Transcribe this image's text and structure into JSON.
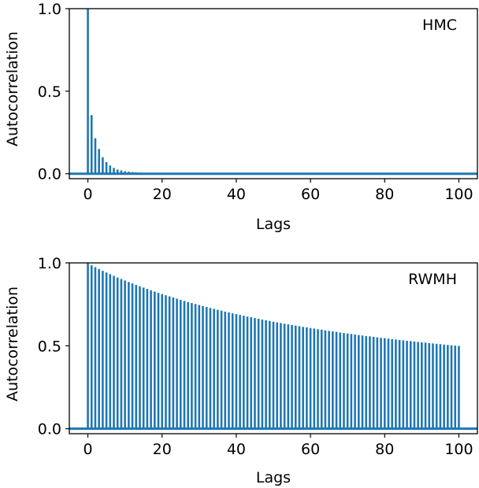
{
  "chart_data": [
    {
      "type": "bar",
      "panel_label": "HMC",
      "xlabel": "Lags",
      "ylabel": "Autocorrelation",
      "xlim": [
        -5,
        105
      ],
      "ylim": [
        -0.03,
        1.0
      ],
      "xticks": [
        0,
        20,
        40,
        60,
        80,
        100
      ],
      "xtick_labels": [
        "0",
        "20",
        "40",
        "60",
        "80",
        "100"
      ],
      "yticks": [
        0.0,
        0.5,
        1.0
      ],
      "ytick_labels": [
        "0.0",
        "0.5",
        "1.0"
      ],
      "bar_color": "#1f77b4",
      "grid": false,
      "lags": [
        0,
        1,
        2,
        3,
        4,
        5,
        6,
        7,
        8,
        9,
        10,
        11,
        12,
        13,
        14,
        15,
        16,
        17,
        18,
        19,
        20,
        21,
        22,
        23,
        24,
        25,
        26,
        27,
        28,
        29,
        30,
        31,
        32,
        33,
        34,
        35,
        36,
        37,
        38,
        39,
        40,
        41,
        42,
        43,
        44,
        45,
        46,
        47,
        48,
        49,
        50,
        51,
        52,
        53,
        54,
        55,
        56,
        57,
        58,
        59,
        60,
        61,
        62,
        63,
        64,
        65,
        66,
        67,
        68,
        69,
        70,
        71,
        72,
        73,
        74,
        75,
        76,
        77,
        78,
        79,
        80,
        81,
        82,
        83,
        84,
        85,
        86,
        87,
        88,
        89,
        90,
        91,
        92,
        93,
        94,
        95,
        96,
        97,
        98,
        99,
        100
      ],
      "values": [
        1.0,
        0.355,
        0.215,
        0.15,
        0.1,
        0.07,
        0.05,
        0.035,
        0.025,
        0.02,
        0.015,
        0.012,
        0.01,
        0.008,
        0.006,
        0.005,
        0.004,
        0.003,
        0.003,
        0.002,
        0.002,
        0.002,
        0.001,
        0.001,
        0.001,
        0.001,
        0.001,
        0.001,
        0.001,
        0.001,
        0.0,
        0.0,
        0.0,
        0.0,
        0.0,
        0.0,
        0.0,
        0.0,
        0.0,
        0.0,
        0.0,
        0.0,
        0.0,
        0.0,
        0.0,
        0.0,
        0.0,
        0.004,
        0.0,
        0.0,
        0.0,
        0.0,
        0.0,
        0.0,
        0.0,
        0.0,
        0.0,
        0.0,
        0.0,
        0.0,
        0.0,
        0.0,
        0.0,
        0.0,
        0.0,
        0.0,
        0.0,
        0.0,
        0.0,
        0.0,
        0.0,
        0.0,
        0.0,
        0.0,
        0.0,
        0.0,
        0.0,
        0.0,
        0.0,
        0.003,
        0.0,
        0.0,
        0.0,
        0.0,
        0.0,
        0.0,
        0.0,
        0.0,
        0.0,
        0.0,
        0.0,
        0.0,
        0.0,
        0.0,
        0.0,
        0.0,
        0.0,
        0.0,
        0.0,
        0.0,
        0.0
      ]
    },
    {
      "type": "bar",
      "panel_label": "RWMH",
      "xlabel": "Lags",
      "ylabel": "Autocorrelation",
      "xlim": [
        -5,
        105
      ],
      "ylim": [
        -0.03,
        1.0
      ],
      "xticks": [
        0,
        20,
        40,
        60,
        80,
        100
      ],
      "xtick_labels": [
        "0",
        "20",
        "40",
        "60",
        "80",
        "100"
      ],
      "yticks": [
        0.0,
        0.5,
        1.0
      ],
      "ytick_labels": [
        "0.0",
        "0.5",
        "1.0"
      ],
      "bar_color": "#1f77b4",
      "grid": false,
      "lags": [
        0,
        1,
        2,
        3,
        4,
        5,
        6,
        7,
        8,
        9,
        10,
        11,
        12,
        13,
        14,
        15,
        16,
        17,
        18,
        19,
        20,
        21,
        22,
        23,
        24,
        25,
        26,
        27,
        28,
        29,
        30,
        31,
        32,
        33,
        34,
        35,
        36,
        37,
        38,
        39,
        40,
        41,
        42,
        43,
        44,
        45,
        46,
        47,
        48,
        49,
        50,
        51,
        52,
        53,
        54,
        55,
        56,
        57,
        58,
        59,
        60,
        61,
        62,
        63,
        64,
        65,
        66,
        67,
        68,
        69,
        70,
        71,
        72,
        73,
        74,
        75,
        76,
        77,
        78,
        79,
        80,
        81,
        82,
        83,
        84,
        85,
        86,
        87,
        88,
        89,
        90,
        91,
        92,
        93,
        94,
        95,
        96,
        97,
        98,
        99,
        100
      ],
      "values": [
        1.0,
        0.985,
        0.974,
        0.963,
        0.952,
        0.942,
        0.932,
        0.922,
        0.912,
        0.903,
        0.894,
        0.885,
        0.876,
        0.867,
        0.859,
        0.851,
        0.843,
        0.835,
        0.827,
        0.819,
        0.812,
        0.805,
        0.798,
        0.791,
        0.784,
        0.777,
        0.771,
        0.764,
        0.758,
        0.752,
        0.746,
        0.74,
        0.734,
        0.728,
        0.723,
        0.717,
        0.712,
        0.706,
        0.701,
        0.696,
        0.691,
        0.686,
        0.681,
        0.676,
        0.672,
        0.667,
        0.663,
        0.658,
        0.654,
        0.65,
        0.645,
        0.641,
        0.637,
        0.633,
        0.629,
        0.625,
        0.622,
        0.618,
        0.614,
        0.611,
        0.607,
        0.604,
        0.6,
        0.597,
        0.593,
        0.59,
        0.587,
        0.584,
        0.58,
        0.577,
        0.574,
        0.571,
        0.568,
        0.565,
        0.562,
        0.559,
        0.557,
        0.554,
        0.551,
        0.548,
        0.546,
        0.543,
        0.54,
        0.538,
        0.535,
        0.533,
        0.53,
        0.528,
        0.526,
        0.523,
        0.521,
        0.519,
        0.516,
        0.514,
        0.512,
        0.51,
        0.507,
        0.505,
        0.503,
        0.501,
        0.499
      ]
    }
  ]
}
